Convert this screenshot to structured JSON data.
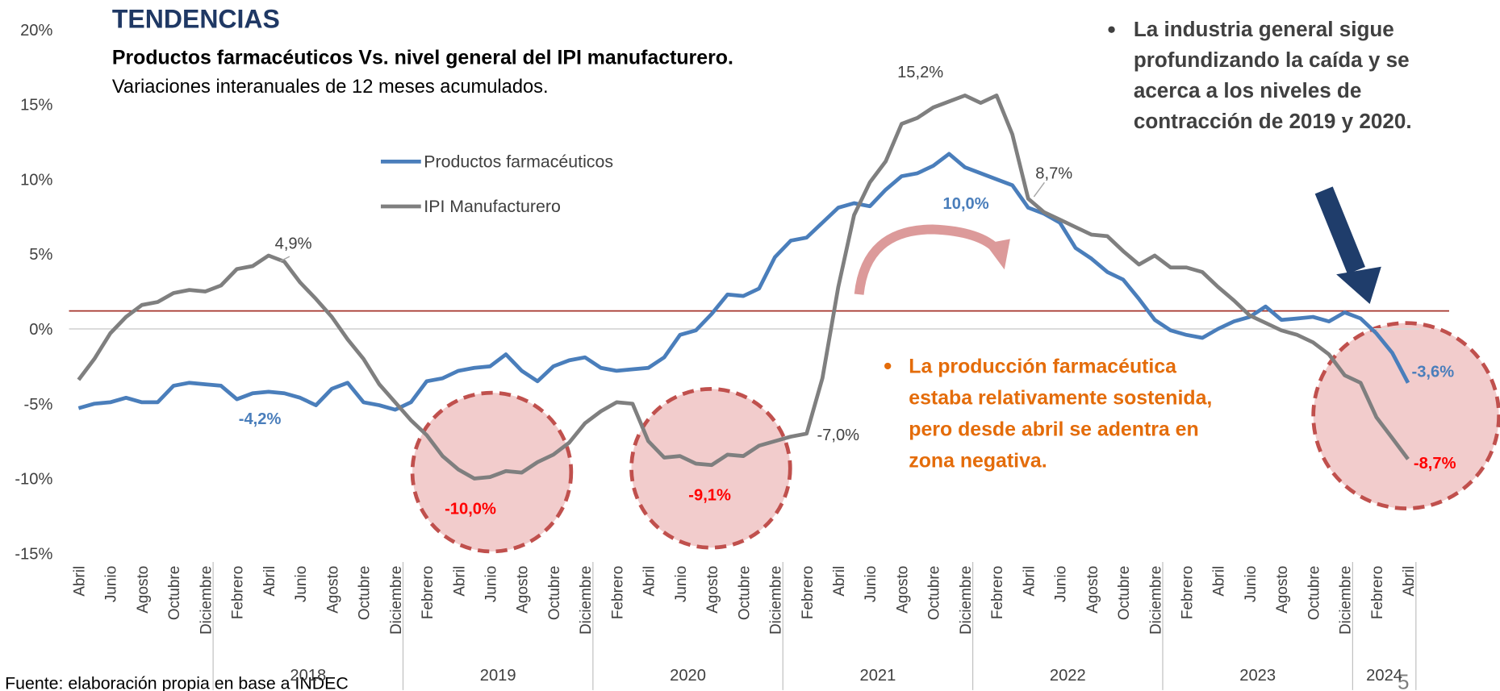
{
  "chart_data": {
    "type": "line",
    "title": "TENDENCIAS",
    "subtitle": "Productos farmacéuticos Vs. nivel general del IPI manufacturero.",
    "subtitle2": "Variaciones interanuales de 12 meses acumulados.",
    "source": "Fuente: elaboración propia en base a INDEC",
    "page_number": "5",
    "categories": [
      "Abril",
      null,
      "Junio",
      null,
      "Agosto",
      null,
      "Octubre",
      null,
      "Diciembre",
      null,
      "Febrero",
      null,
      "Abril",
      null,
      "Junio",
      null,
      "Agosto",
      null,
      "Octubre",
      null,
      "Diciembre",
      null,
      "Febrero",
      null,
      "Abril",
      null,
      "Junio",
      null,
      "Agosto",
      null,
      "Octubre",
      null,
      "Diciembre",
      null,
      "Febrero",
      null,
      "Abril",
      null,
      "Junio",
      null,
      "Agosto",
      null,
      "Octubre",
      null,
      "Diciembre",
      null,
      "Febrero",
      null,
      "Abril",
      null,
      "Junio",
      null,
      "Agosto",
      null,
      "Octubre",
      null,
      "Diciembre",
      null,
      "Febrero",
      null,
      "Abril",
      null,
      "Junio",
      null,
      "Agosto",
      null,
      "Octubre",
      null,
      "Diciembre",
      null,
      "Febrero",
      null,
      "Abril",
      null,
      "Junio",
      null,
      "Agosto",
      null,
      "Octubre",
      null,
      "Diciembre",
      null,
      "Febrero",
      null,
      "Abril"
    ],
    "years": [
      "2018",
      "2019",
      "2020",
      "2021",
      "2022",
      "2023",
      "2024"
    ],
    "series": [
      {
        "name": "Productos farmacéuticos",
        "color": "#4a7ebb",
        "values": [
          -5.3,
          -5.0,
          -4.9,
          -4.6,
          -4.9,
          -4.9,
          -3.8,
          -3.6,
          -3.7,
          -3.8,
          -4.7,
          -4.3,
          -4.2,
          -4.3,
          -4.6,
          -5.1,
          -4.0,
          -3.6,
          -4.9,
          -5.1,
          -5.4,
          -4.9,
          -3.5,
          -3.3,
          -2.8,
          -2.6,
          -2.5,
          -1.7,
          -2.8,
          -3.5,
          -2.5,
          -2.1,
          -1.9,
          -2.6,
          -2.8,
          -2.7,
          -2.6,
          -1.9,
          -0.4,
          -0.1,
          1.0,
          2.3,
          2.2,
          2.7,
          4.8,
          5.9,
          6.1,
          7.1,
          8.1,
          8.4,
          8.2,
          9.3,
          10.2,
          10.4,
          10.9,
          11.7,
          10.8,
          10.4,
          10.0,
          9.6,
          8.1,
          7.7,
          7.1,
          5.4,
          4.7,
          3.8,
          3.3,
          2.0,
          0.6,
          -0.1,
          -0.4,
          -0.6,
          0.0,
          0.5,
          0.8,
          1.5,
          0.6,
          0.7,
          0.8,
          0.5,
          1.1,
          0.7,
          -0.3,
          -1.6,
          -3.6
        ],
        "value_labels": [
          null,
          null,
          null,
          null,
          null,
          null,
          null,
          null,
          null,
          null,
          null,
          null,
          "-4,2%",
          null,
          null,
          null,
          null,
          null,
          null,
          null,
          null,
          null,
          null,
          null,
          null,
          null,
          null,
          null,
          null,
          null,
          null,
          null,
          null,
          null,
          null,
          null,
          null,
          null,
          null,
          null,
          null,
          null,
          null,
          null,
          null,
          null,
          null,
          null,
          null,
          null,
          null,
          null,
          null,
          null,
          null,
          null,
          null,
          null,
          "10,0%",
          null,
          null,
          null,
          null,
          null,
          null,
          null,
          null,
          null,
          null,
          null,
          null,
          null,
          null,
          null,
          null,
          null,
          null,
          null,
          null,
          null,
          null,
          null,
          null,
          null,
          "-3,6%"
        ]
      },
      {
        "name": "IPI Manufacturero",
        "color": "#7f7f7f",
        "values": [
          -3.4,
          -2.0,
          -0.3,
          0.8,
          1.6,
          1.8,
          2.4,
          2.6,
          2.5,
          2.9,
          4.0,
          4.2,
          4.9,
          4.5,
          3.1,
          2.0,
          0.8,
          -0.7,
          -2.0,
          -3.7,
          -4.9,
          -6.1,
          -7.1,
          -8.5,
          -9.4,
          -10.0,
          -9.9,
          -9.5,
          -9.6,
          -8.9,
          -8.4,
          -7.6,
          -6.3,
          -5.5,
          -4.9,
          -5.0,
          -7.5,
          -8.6,
          -8.5,
          -9.0,
          -9.1,
          -8.4,
          -8.5,
          -7.8,
          -7.5,
          -7.2,
          -7.0,
          -3.3,
          2.8,
          7.6,
          9.8,
          11.2,
          13.7,
          14.1,
          14.8,
          15.2,
          15.6,
          15.1,
          15.6,
          13.0,
          8.7,
          7.8,
          7.3,
          6.8,
          6.3,
          6.2,
          5.2,
          4.3,
          4.9,
          4.1,
          4.1,
          3.8,
          2.8,
          1.9,
          0.9,
          0.4,
          -0.1,
          -0.4,
          -0.9,
          -1.7,
          -3.1,
          -3.6,
          -5.9,
          -7.3,
          -8.7
        ],
        "value_labels": [
          null,
          null,
          null,
          null,
          null,
          null,
          null,
          null,
          null,
          null,
          null,
          null,
          "4,9%",
          null,
          null,
          null,
          null,
          null,
          null,
          null,
          null,
          null,
          null,
          null,
          null,
          "-10,0%",
          null,
          null,
          null,
          null,
          null,
          null,
          null,
          null,
          null,
          null,
          null,
          null,
          null,
          null,
          "-9,1%",
          null,
          null,
          null,
          null,
          null,
          "-7,0%",
          null,
          null,
          null,
          null,
          null,
          null,
          null,
          null,
          "15,2%",
          null,
          null,
          null,
          null,
          "8,7%",
          null,
          null,
          null,
          null,
          null,
          null,
          null,
          null,
          null,
          null,
          null,
          null,
          null,
          null,
          null,
          null,
          null,
          null,
          null,
          null,
          null,
          null,
          null,
          "-8,7%"
        ]
      }
    ],
    "ylim": [
      -15,
      20
    ],
    "yticks": [
      {
        "value": -15,
        "label": "-15%"
      },
      {
        "value": -10,
        "label": "-10%"
      },
      {
        "value": -5,
        "label": "-5%"
      },
      {
        "value": 0,
        "label": "0%"
      },
      {
        "value": 5,
        "label": "5%"
      },
      {
        "value": 10,
        "label": "10%"
      },
      {
        "value": 15,
        "label": "15%"
      },
      {
        "value": 20,
        "label": "20%"
      }
    ],
    "reference_line": {
      "value": 1.2,
      "color": "#a5342b"
    },
    "legend": "upper-center",
    "notes": [
      {
        "lines": [
          "La industria general sigue",
          "profundizando la caída y se",
          "acerca a los niveles de",
          "contracción de 2019 y 2020."
        ],
        "color": "#404040"
      },
      {
        "lines": [
          "La producción farmacéutica",
          "estaba relativamente sostenida,",
          "pero desde abril se adentra en",
          "zona negativa."
        ],
        "color": "#e46c0a"
      }
    ]
  }
}
